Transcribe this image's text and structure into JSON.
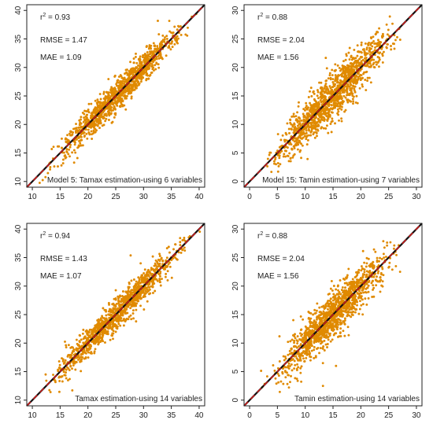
{
  "chart_data": [
    {
      "type": "scatter",
      "caption": "Model 5: Tamax estimation-using 6 variables",
      "r2_label": "r",
      "r2_value": " = 0.93",
      "rmse": "RMSE = 1.47",
      "mae": "MAE = 1.09",
      "xlim": [
        9,
        41
      ],
      "ylim": [
        9,
        41
      ],
      "xticks": [
        10,
        15,
        20,
        25,
        30,
        35,
        40
      ],
      "yticks": [
        10,
        15,
        20,
        25,
        30,
        35,
        40
      ],
      "point_color": "#e08a00",
      "line_color": "#111111",
      "line_dash_color": "#d81b1b",
      "seed": 11,
      "n_points": 1200,
      "x_range": [
        10.5,
        40.5
      ],
      "noise_sd": 1.35
    },
    {
      "type": "scatter",
      "caption": "Model 15: Tamin estimation-using 7 variables",
      "r2_label": "r",
      "r2_value": " = 0.88",
      "rmse": "RMSE = 2.04",
      "mae": "MAE = 1.56",
      "xlim": [
        -1,
        31
      ],
      "ylim": [
        -1,
        31
      ],
      "xticks": [
        0,
        5,
        10,
        15,
        20,
        25,
        30
      ],
      "yticks": [
        0,
        5,
        10,
        15,
        20,
        25,
        30
      ],
      "point_color": "#e08a00",
      "line_color": "#111111",
      "line_dash_color": "#d81b1b",
      "seed": 23,
      "n_points": 1300,
      "x_range": [
        1.5,
        28
      ],
      "noise_sd": 1.9
    },
    {
      "type": "scatter",
      "caption": "Tamax estimation-using 14 variables",
      "r2_label": "r",
      "r2_value": " = 0.94",
      "rmse": "RMSE = 1.43",
      "mae": "MAE = 1.07",
      "xlim": [
        9,
        41
      ],
      "ylim": [
        9,
        41
      ],
      "xticks": [
        10,
        15,
        20,
        25,
        30,
        35,
        40
      ],
      "yticks": [
        10,
        15,
        20,
        25,
        30,
        35,
        40
      ],
      "point_color": "#e08a00",
      "line_color": "#111111",
      "line_dash_color": "#d81b1b",
      "seed": 37,
      "n_points": 1200,
      "x_range": [
        10.5,
        40.5
      ],
      "noise_sd": 1.3
    },
    {
      "type": "scatter",
      "caption": "Tamin estimation-using 14 variables",
      "r2_label": "r",
      "r2_value": " = 0.88",
      "rmse": "RMSE = 2.04",
      "mae": "MAE = 1.56",
      "xlim": [
        -1,
        31
      ],
      "ylim": [
        -1,
        31
      ],
      "xticks": [
        0,
        5,
        10,
        15,
        20,
        25,
        30
      ],
      "yticks": [
        0,
        5,
        10,
        15,
        20,
        25,
        30
      ],
      "point_color": "#e08a00",
      "line_color": "#111111",
      "line_dash_color": "#d81b1b",
      "seed": 53,
      "n_points": 1300,
      "x_range": [
        1.5,
        28
      ],
      "noise_sd": 1.9
    }
  ]
}
